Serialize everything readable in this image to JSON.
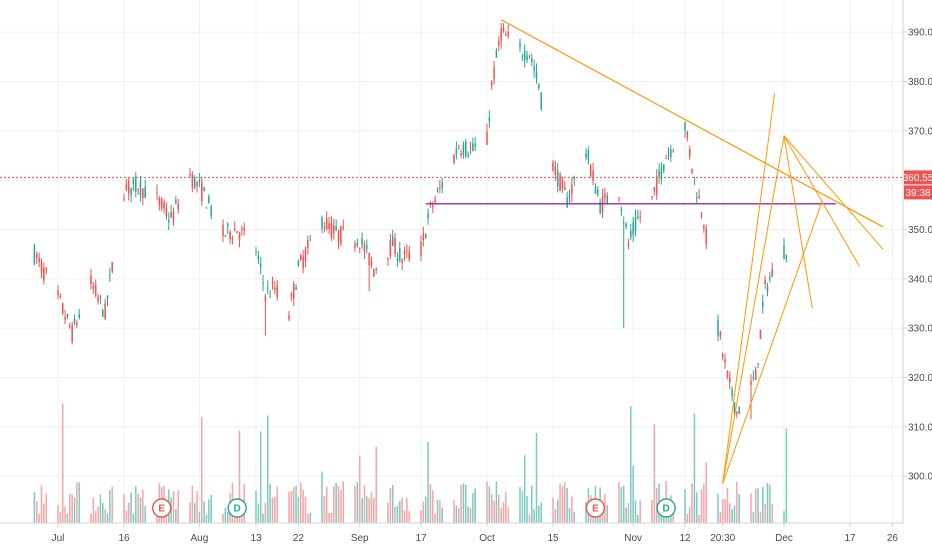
{
  "chart_data": {
    "type": "candlestick",
    "price_axis": {
      "ticks": [
        "390.00",
        "380.00",
        "370.00",
        "360.00",
        "350.00",
        "340.00",
        "330.00",
        "320.00",
        "310.00",
        "300.00"
      ],
      "tick_values": [
        390,
        380,
        370,
        360,
        350,
        340,
        330,
        320,
        310,
        300
      ],
      "range": [
        290.5,
        396.5
      ]
    },
    "time_axis": {
      "labels": [
        "Jul",
        "16",
        "Aug",
        "13",
        "22",
        "Sep",
        "17",
        "Oct",
        "15",
        "Nov",
        "12",
        "20:30",
        "Dec",
        "17",
        "26"
      ],
      "label_dates": [
        "2018-07-02",
        "2018-07-16",
        "2018-08-01",
        "2018-08-13",
        "2018-08-22",
        "2018-09-04",
        "2018-09-17",
        "2018-10-01",
        "2018-10-15",
        "2018-11-01",
        "2018-11-12",
        "2018-11-20",
        "2018-12-03",
        "2018-12-17",
        "2018-12-26"
      ]
    },
    "current_price": {
      "label": "360.55",
      "value": 360.55,
      "countdown": "39:38",
      "color": "#ef5350"
    },
    "event_markers": [
      {
        "label": "E",
        "date": "2018-07-24",
        "color": "#ef5350"
      },
      {
        "label": "D",
        "date": "2018-08-09",
        "color": "#26a69a"
      },
      {
        "label": "E",
        "date": "2018-10-24",
        "color": "#ef5350"
      },
      {
        "label": "D",
        "date": "2018-11-08",
        "color": "#26a69a"
      }
    ],
    "drawings": [
      {
        "kind": "horizontal",
        "color": "#9c27b0",
        "value": 355.2,
        "from": "2018-09-18",
        "to": "2018-12-14"
      },
      {
        "kind": "trendline",
        "color": "#ff9800",
        "from": [
          "2018-10-04",
          392.5
        ],
        "to": [
          "2018-12-24",
          350.5
        ]
      },
      {
        "kind": "fan",
        "color": "#ff9800",
        "origin": [
          "2018-11-20",
          298.5
        ],
        "to": [
          [
            "2018-12-01",
            377.5
          ],
          [
            "2018-12-03",
            369.0
          ],
          [
            "2018-12-11",
            355.5
          ]
        ]
      },
      {
        "kind": "fan",
        "color": "#ff9800",
        "origin": [
          "2018-12-03",
          369.0
        ],
        "to": [
          [
            "2018-12-24",
            346.0
          ],
          [
            "2018-12-19",
            342.5
          ],
          [
            "2018-12-09",
            334.0
          ]
        ]
      }
    ],
    "series": [
      {
        "name": "",
        "color_up": "#26a69a",
        "color_down": "#ef5350",
        "ohlc_path": [
          [
            "2018-06-27",
            345
          ],
          [
            "2018-07-02",
            336
          ],
          [
            "2018-07-05",
            329
          ],
          [
            "2018-07-09",
            339
          ],
          [
            "2018-07-12",
            333
          ],
          [
            "2018-07-16",
            358
          ],
          [
            "2018-07-19",
            359
          ],
          [
            "2018-07-23",
            356
          ],
          [
            "2018-07-26",
            352
          ],
          [
            "2018-07-30",
            361
          ],
          [
            "2018-08-02",
            357
          ],
          [
            "2018-08-06",
            349
          ],
          [
            "2018-08-09",
            350
          ],
          [
            "2018-08-13",
            346
          ],
          [
            "2018-08-15",
            337
          ],
          [
            "2018-08-17",
            338
          ],
          [
            "2018-08-20",
            333
          ],
          [
            "2018-08-22",
            342
          ],
          [
            "2018-08-27",
            352
          ],
          [
            "2018-08-30",
            349
          ],
          [
            "2018-09-04",
            348
          ],
          [
            "2018-09-07",
            342
          ],
          [
            "2018-09-11",
            347
          ],
          [
            "2018-09-13",
            344
          ],
          [
            "2018-09-17",
            346
          ],
          [
            "2018-09-19",
            354
          ],
          [
            "2018-09-21",
            358
          ],
          [
            "2018-09-25",
            367
          ],
          [
            "2018-09-28",
            366
          ],
          [
            "2018-10-01",
            368
          ],
          [
            "2018-10-02",
            379
          ],
          [
            "2018-10-04",
            390
          ],
          [
            "2018-10-08",
            386
          ],
          [
            "2018-10-10",
            386
          ],
          [
            "2018-10-12",
            379
          ],
          [
            "2018-10-15",
            363
          ],
          [
            "2018-10-18",
            356
          ],
          [
            "2018-10-22",
            366
          ],
          [
            "2018-10-25",
            355
          ],
          [
            "2018-10-29",
            358
          ],
          [
            "2018-10-31",
            347
          ],
          [
            "2018-11-02",
            352
          ],
          [
            "2018-11-05",
            356
          ],
          [
            "2018-11-08",
            365
          ],
          [
            "2018-11-12",
            371
          ],
          [
            "2018-11-14",
            360
          ],
          [
            "2018-11-16",
            352
          ],
          [
            "2018-11-19",
            330
          ],
          [
            "2018-11-21",
            320
          ],
          [
            "2018-11-23",
            313
          ],
          [
            "2018-11-27",
            320
          ],
          [
            "2018-11-29",
            338
          ],
          [
            "2018-12-03",
            346
          ]
        ],
        "spikes": [
          [
            "2018-08-15",
            328.5
          ],
          [
            "2018-10-30",
            330.0
          ],
          [
            "2018-09-06",
            337.5
          ],
          [
            "2018-11-26",
            311.5
          ]
        ]
      }
    ],
    "volume": {
      "up_color": "#7fcbc3",
      "down_color": "#f4a6a6"
    },
    "grid": true
  }
}
